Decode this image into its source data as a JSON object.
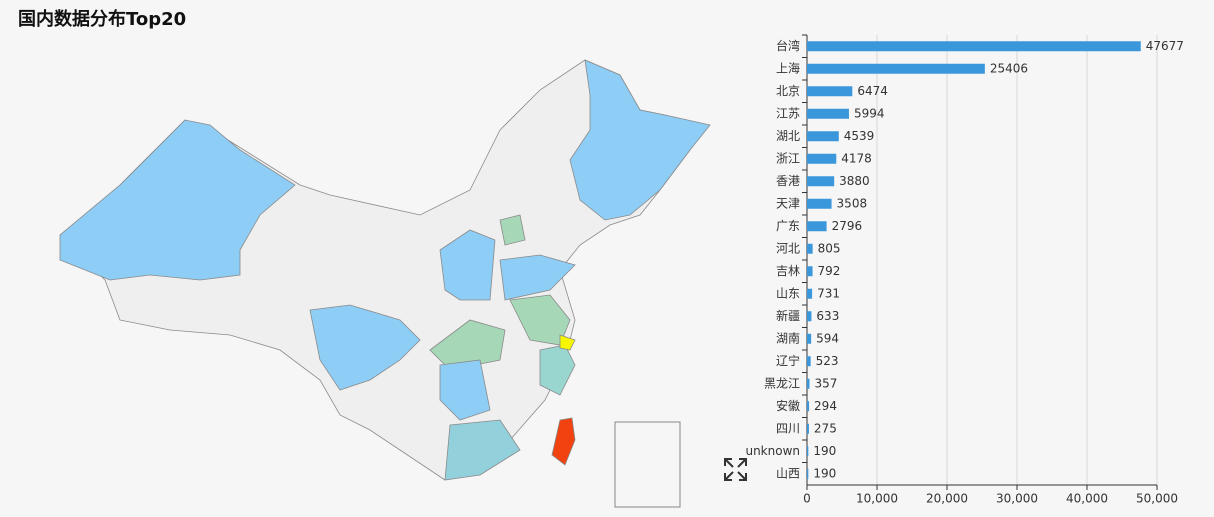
{
  "chart_data": {
    "type": "barh",
    "title": "国内数据分布Top20",
    "categories": [
      "台湾",
      "上海",
      "北京",
      "江苏",
      "湖北",
      "浙江",
      "香港",
      "天津",
      "广东",
      "河北",
      "吉林",
      "山东",
      "新疆",
      "湖南",
      "辽宁",
      "黑龙江",
      "安徽",
      "四川",
      "unknown",
      "山西"
    ],
    "values": [
      47677,
      25406,
      6474,
      5994,
      4539,
      4178,
      3880,
      3508,
      2796,
      805,
      792,
      731,
      633,
      594,
      523,
      357,
      294,
      275,
      190,
      190
    ],
    "color": "#3a97db",
    "xlim": [
      0,
      50000
    ],
    "xticks": [
      0,
      {
        "value": 10000,
        "label": "10,000"
      },
      {
        "value": 20000,
        "label": "20,000"
      },
      {
        "value": 30000,
        "label": "30,000"
      },
      {
        "value": 40000,
        "label": "40,000"
      },
      {
        "value": 50000,
        "label": "50,000"
      }
    ],
    "grid": true
  }
}
